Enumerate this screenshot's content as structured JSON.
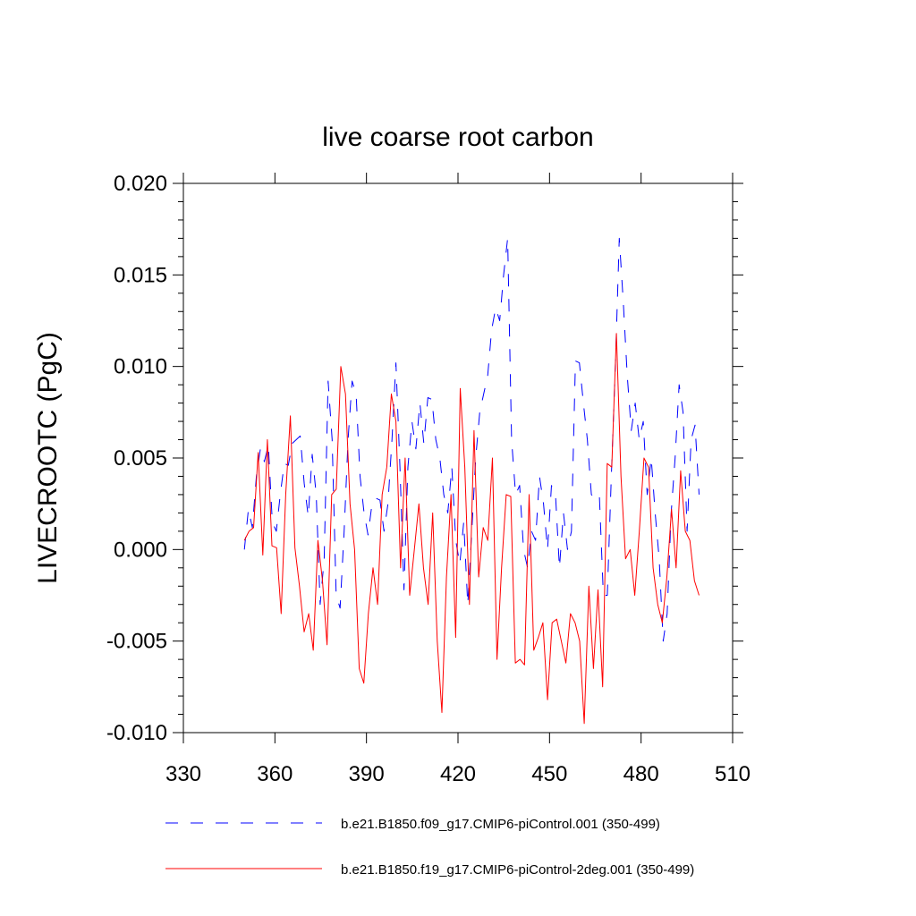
{
  "chart_data": {
    "type": "line",
    "title": "live coarse root carbon",
    "xlabel": "",
    "ylabel": "LIVECROOTC  (PgC)",
    "xlim": [
      330,
      510
    ],
    "ylim": [
      -0.01,
      0.02
    ],
    "x_ticks": [
      330,
      360,
      390,
      420,
      450,
      480,
      510
    ],
    "x_tick_labels": [
      "330",
      "360",
      "390",
      "420",
      "450",
      "480",
      "510"
    ],
    "y_ticks": [
      -0.01,
      -0.005,
      0.0,
      0.005,
      0.01,
      0.015,
      0.02
    ],
    "y_tick_labels": [
      "-0.010",
      "-0.005",
      "0.000",
      "0.005",
      "0.010",
      "0.015",
      "0.020"
    ],
    "grid": false,
    "legend_position": "bottom",
    "series": [
      {
        "name": "b.e21.B1850.f09_g17.CMIP6-piControl.001 (350-499)",
        "color": "#0000ff",
        "dash": "dashed",
        "x_start": 350,
        "values": [
          0.0,
          0.0022,
          0.0012,
          0.004,
          0.0055,
          0.0048,
          0.0057,
          0.0015,
          0.001,
          0.003,
          0.0047,
          0.0046,
          0.0058,
          0.006,
          0.0062,
          0.0036,
          0.0018,
          0.0052,
          0.003,
          -0.003,
          -0.0005,
          0.0092,
          0.006,
          -0.0025,
          -0.0032,
          0.001,
          0.006,
          0.0092,
          0.0085,
          0.004,
          0.002,
          0.0008,
          0.0025,
          0.0028,
          0.0027,
          0.001,
          0.0025,
          0.006,
          0.0102,
          0.0045,
          -0.0022,
          0.0045,
          0.007,
          0.0055,
          0.008,
          0.0058,
          0.0083,
          0.0082,
          0.006,
          0.005,
          0.003,
          0.002,
          0.0045,
          0.0005,
          -0.0008,
          0.0015,
          -0.003,
          0.001,
          0.005,
          0.0075,
          0.0085,
          0.0095,
          0.012,
          0.0132,
          0.0125,
          0.015,
          0.017,
          0.006,
          0.003,
          0.0035,
          0.0,
          -0.001,
          0.001,
          0.0005,
          0.004,
          0.0025,
          0.0,
          0.0035,
          0.003,
          -0.001,
          0.002,
          0.0,
          0.001,
          0.0103,
          0.0102,
          0.008,
          0.006,
          0.003,
          0.0028,
          0.003,
          -0.0025,
          -0.0025,
          0.004,
          0.01,
          0.017,
          0.0135,
          0.0095,
          0.0065,
          0.008,
          0.006,
          0.007,
          0.003,
          0.005,
          0.002,
          -0.0005,
          -0.005,
          -0.0035,
          0.002,
          0.005,
          0.009,
          0.0075,
          0.001,
          0.006,
          0.0068,
          0.003
        ],
        "end_x": 499
      },
      {
        "name": "b.e21.B1850.f19_g17.CMIP6-piControl-2deg.001 (350-499)",
        "color": "#ff0000",
        "dash": "solid",
        "x_start": 350,
        "values": [
          0.0005,
          0.001,
          0.0012,
          0.0053,
          -0.0003,
          0.006,
          0.0002,
          0.0001,
          -0.0035,
          0.003,
          0.0073,
          0.0001,
          -0.002,
          -0.0045,
          -0.0035,
          -0.0055,
          0.0005,
          -0.0017,
          -0.0052,
          0.003,
          0.0033,
          0.01,
          0.0085,
          0.0025,
          0.0,
          -0.0065,
          -0.0073,
          -0.0035,
          -0.001,
          -0.003,
          0.003,
          0.0045,
          0.0085,
          0.007,
          -0.001,
          0.005,
          -0.0025,
          0.0,
          0.0025,
          -0.001,
          -0.003,
          0.002,
          -0.005,
          -0.0089,
          -0.0015,
          0.003,
          -0.0048,
          0.0088,
          0.0045,
          -0.003,
          0.0065,
          -0.0015,
          0.0012,
          0.0005,
          0.005,
          -0.006,
          -0.001,
          0.003,
          0.0029,
          -0.0062,
          -0.006,
          -0.0063,
          0.003,
          -0.0055,
          -0.0048,
          -0.004,
          -0.0082,
          -0.004,
          -0.0038,
          -0.005,
          -0.0062,
          -0.0035,
          -0.004,
          -0.005,
          -0.0095,
          -0.002,
          -0.0065,
          -0.0022,
          -0.0075,
          0.0047,
          0.0045,
          0.0118,
          0.004,
          -0.0005,
          0.0,
          -0.0025,
          0.001,
          0.005,
          0.0045,
          -0.001,
          -0.003,
          -0.004,
          -0.0015,
          0.0022,
          -0.001,
          0.0043,
          0.001,
          0.0005,
          -0.0017,
          -0.0025
        ],
        "end_x": 499
      }
    ]
  }
}
